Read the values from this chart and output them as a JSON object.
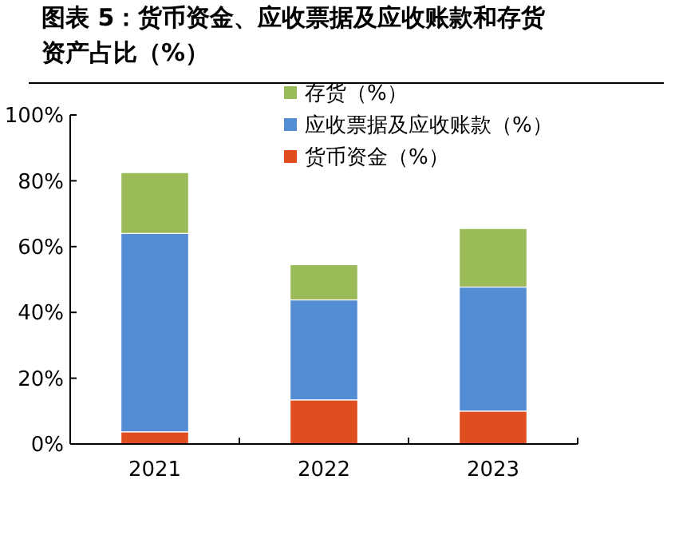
{
  "chart_data": {
    "type": "bar",
    "stacked": true,
    "title": "图表 5：货币资金、应收票据及应收账款和存货资产占比（%）",
    "categories": [
      "2021",
      "2022",
      "2023"
    ],
    "series": [
      {
        "name": "货币资金（%）",
        "color": "#e04e1f",
        "values": [
          3.7,
          13.4,
          10
        ]
      },
      {
        "name": "应收票据及应收账款（%）",
        "color": "#548dd4",
        "values": [
          60.3,
          30.4,
          37.7
        ]
      },
      {
        "name": "存货（%）",
        "color": "#9bbb59",
        "values": [
          18.5,
          10.7,
          17.8
        ]
      }
    ],
    "ylim": [
      0,
      100
    ],
    "yticks": [
      {
        "value": 0,
        "label": "0%"
      },
      {
        "value": 20,
        "label": "20%"
      },
      {
        "value": 40,
        "label": "40%"
      },
      {
        "value": 60,
        "label": "60%"
      },
      {
        "value": 80,
        "label": "80%"
      },
      {
        "value": 100,
        "label": "100%"
      }
    ],
    "legend": "top right"
  }
}
